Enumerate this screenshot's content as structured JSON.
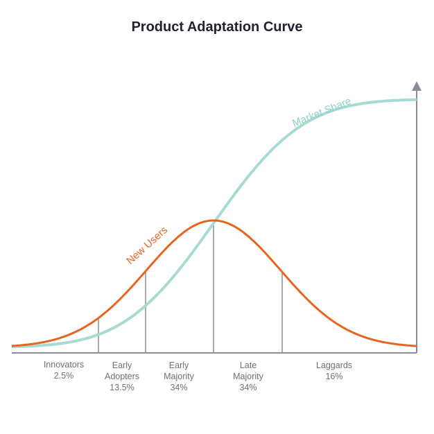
{
  "title": "Product Adaptation Curve",
  "chart_data": {
    "type": "line",
    "title": "Product Adaptation Curve",
    "series": [
      {
        "name": "New Users",
        "shape": "bell curve (normal distribution)",
        "color": "#e8641e"
      },
      {
        "name": "Market Share",
        "shape": "S-curve (cumulative)",
        "color": "#a6dbd3"
      }
    ],
    "segments": [
      {
        "label": [
          "Innovators"
        ],
        "percent": "2.5%"
      },
      {
        "label": [
          "Early",
          "Adopters"
        ],
        "percent": "13.5%"
      },
      {
        "label": [
          "Early",
          "Majority"
        ],
        "percent": "34%"
      },
      {
        "label": [
          "Late",
          "Majority"
        ],
        "percent": "34%"
      },
      {
        "label": [
          "Laggards"
        ],
        "percent": "16%"
      }
    ],
    "axis_color": "#8a8d99",
    "grid": false
  }
}
